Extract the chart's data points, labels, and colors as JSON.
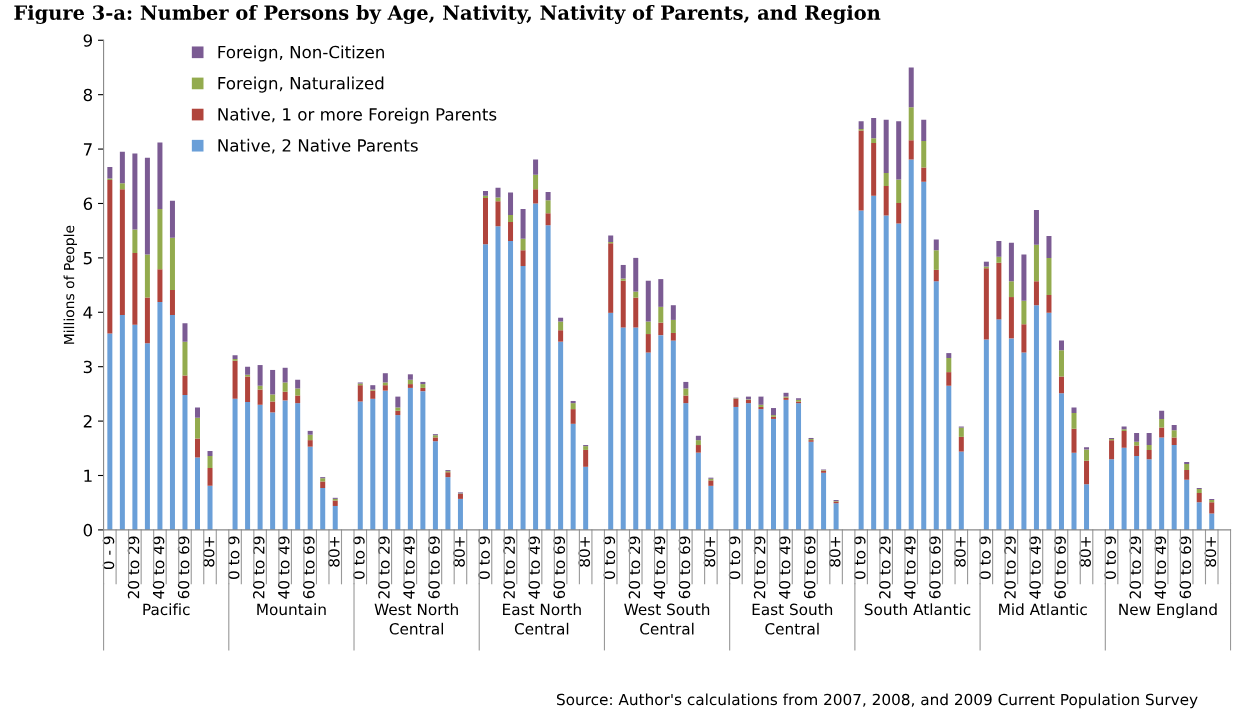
{
  "chart_data": {
    "type": "bar",
    "stacked": true,
    "title": "Figure 3-a: Number of Persons by Age, Nativity, Nativity of Parents, and Region",
    "ylabel": "Millions of People",
    "categories": [
      "0 - 9",
      null,
      "20 to 29",
      null,
      "40 to 49",
      null,
      "60 to 69",
      null,
      "80+",
      null,
      "0 to 9",
      null,
      "20 to 29",
      null,
      "40 to 49",
      null,
      "60 to 69",
      null,
      "80+",
      null,
      "0 to 9",
      null,
      "20 to 29",
      null,
      "40 to 49",
      null,
      "60 to 69",
      null,
      "80+",
      null,
      "0 to 9",
      null,
      "20 to 29",
      null,
      "40 to 49",
      null,
      "60 to 69",
      null,
      "80+",
      null,
      "0 to 9",
      null,
      "20 to 29",
      null,
      "40 to 49",
      null,
      "60 to 69",
      null,
      "80+",
      null,
      "0 to 9",
      null,
      "20 to 29",
      null,
      "40 to 49",
      null,
      "60 to 69",
      null,
      "80+",
      null,
      "0 to 9",
      null,
      "20 to 29",
      null,
      "40 to 49",
      null,
      "60 to 69",
      null,
      "80+",
      null,
      "0 to 9",
      null,
      "20 to 29",
      null,
      "40 to 49",
      null,
      "60 to 69",
      null,
      "80+",
      null,
      "0 to 9",
      null,
      "20 to 29",
      null,
      "40 to 49",
      null,
      "60 to 69",
      null,
      "80+",
      null
    ],
    "series": [
      {
        "name": "Native, 2 Native Parents",
        "color": "#6a9fd8",
        "values": [
          3.61,
          3.95,
          3.77,
          3.43,
          4.19,
          3.95,
          2.48,
          1.33,
          0.81,
          null,
          2.41,
          2.35,
          2.3,
          2.16,
          2.38,
          2.33,
          1.53,
          0.77,
          0.44,
          null,
          2.36,
          2.41,
          2.56,
          2.11,
          2.61,
          2.55,
          1.63,
          0.97,
          0.57,
          null,
          5.25,
          5.58,
          5.31,
          4.85,
          6.0,
          5.6,
          3.46,
          1.95,
          1.16,
          null,
          3.99,
          3.72,
          3.72,
          3.26,
          3.58,
          3.48,
          2.33,
          1.42,
          0.81,
          null,
          2.26,
          2.33,
          2.22,
          2.04,
          2.39,
          2.33,
          1.62,
          1.05,
          0.49,
          null,
          5.87,
          6.14,
          5.78,
          5.63,
          6.81,
          6.4,
          4.57,
          2.65,
          1.44,
          null,
          3.5,
          3.87,
          3.52,
          3.26,
          4.13,
          3.99,
          2.51,
          1.42,
          0.84,
          null,
          1.3,
          1.51,
          1.36,
          1.3,
          1.7,
          1.56,
          0.92,
          0.51,
          0.3,
          null
        ]
      },
      {
        "name": "Native, 1 or more Foreign Parents",
        "color": "#b0443c",
        "values": [
          2.82,
          2.31,
          1.32,
          0.84,
          0.6,
          0.46,
          0.36,
          0.35,
          0.33,
          null,
          0.7,
          0.47,
          0.28,
          0.2,
          0.16,
          0.14,
          0.12,
          0.12,
          0.1,
          null,
          0.3,
          0.15,
          0.1,
          0.08,
          0.07,
          0.06,
          0.07,
          0.09,
          0.09,
          null,
          0.85,
          0.46,
          0.35,
          0.29,
          0.26,
          0.22,
          0.21,
          0.27,
          0.31,
          null,
          1.28,
          0.86,
          0.55,
          0.34,
          0.23,
          0.14,
          0.14,
          0.14,
          0.1,
          null,
          0.15,
          0.06,
          0.04,
          0.04,
          0.04,
          0.03,
          0.03,
          0.04,
          0.03,
          null,
          1.47,
          0.97,
          0.54,
          0.38,
          0.35,
          0.26,
          0.21,
          0.25,
          0.27,
          null,
          1.31,
          1.04,
          0.76,
          0.52,
          0.44,
          0.33,
          0.31,
          0.44,
          0.43,
          null,
          0.35,
          0.31,
          0.19,
          0.17,
          0.18,
          0.14,
          0.18,
          0.17,
          0.21,
          null
        ]
      },
      {
        "name": "Foreign, Naturalized",
        "color": "#93ab4e",
        "values": [
          0.03,
          0.11,
          0.43,
          0.79,
          1.11,
          0.96,
          0.62,
          0.38,
          0.22,
          null,
          0.03,
          0.03,
          0.07,
          0.13,
          0.17,
          0.13,
          0.1,
          0.06,
          0.03,
          null,
          0.03,
          0.02,
          0.05,
          0.06,
          0.08,
          0.07,
          0.04,
          0.02,
          0.01,
          null,
          0.04,
          0.07,
          0.13,
          0.21,
          0.27,
          0.24,
          0.16,
          0.11,
          0.07,
          null,
          0.02,
          0.04,
          0.11,
          0.23,
          0.29,
          0.24,
          0.13,
          0.09,
          0.03,
          null,
          0.01,
          0.01,
          0.04,
          0.03,
          0.02,
          0.03,
          0.02,
          0.01,
          0.01,
          null,
          0.03,
          0.09,
          0.24,
          0.43,
          0.61,
          0.49,
          0.36,
          0.26,
          0.17,
          null,
          0.03,
          0.11,
          0.29,
          0.43,
          0.67,
          0.68,
          0.48,
          0.29,
          0.21,
          null,
          0.02,
          0.03,
          0.07,
          0.09,
          0.16,
          0.13,
          0.11,
          0.07,
          0.04,
          null
        ]
      },
      {
        "name": "Foreign, Non-Citizen",
        "color": "#7b5b93",
        "values": [
          0.21,
          0.58,
          1.4,
          1.78,
          1.22,
          0.68,
          0.34,
          0.19,
          0.09,
          null,
          0.07,
          0.15,
          0.38,
          0.45,
          0.27,
          0.16,
          0.07,
          0.02,
          0.02,
          null,
          0.02,
          0.08,
          0.17,
          0.2,
          0.1,
          0.04,
          0.02,
          0.02,
          0.02,
          null,
          0.09,
          0.18,
          0.41,
          0.55,
          0.28,
          0.15,
          0.07,
          0.04,
          0.02,
          null,
          0.12,
          0.25,
          0.62,
          0.75,
          0.51,
          0.27,
          0.12,
          0.08,
          0.02,
          null,
          0.01,
          0.05,
          0.15,
          0.13,
          0.07,
          0.03,
          0.02,
          0.01,
          0.02,
          null,
          0.14,
          0.37,
          0.98,
          1.07,
          0.73,
          0.39,
          0.2,
          0.09,
          0.02,
          null,
          0.09,
          0.29,
          0.71,
          0.85,
          0.64,
          0.4,
          0.18,
          0.1,
          0.04,
          null,
          0.02,
          0.05,
          0.16,
          0.22,
          0.15,
          0.1,
          0.04,
          0.02,
          0.02,
          null
        ]
      }
    ],
    "ylim": [
      0,
      9
    ],
    "yticks": [
      0,
      1,
      2,
      3,
      4,
      5,
      6,
      7,
      8,
      9
    ],
    "grid": false,
    "legend": "top left",
    "annotations": [
      "Pacific",
      "Mountain",
      "West North\nCentral",
      "East North\nCentral",
      "West South\nCentral",
      "East South\nCentral",
      "South Atlantic",
      "Mid Atlantic",
      "New England",
      "Source: Author's calculations from 2007, 2008, and 2009 Current Population Survey"
    ]
  }
}
